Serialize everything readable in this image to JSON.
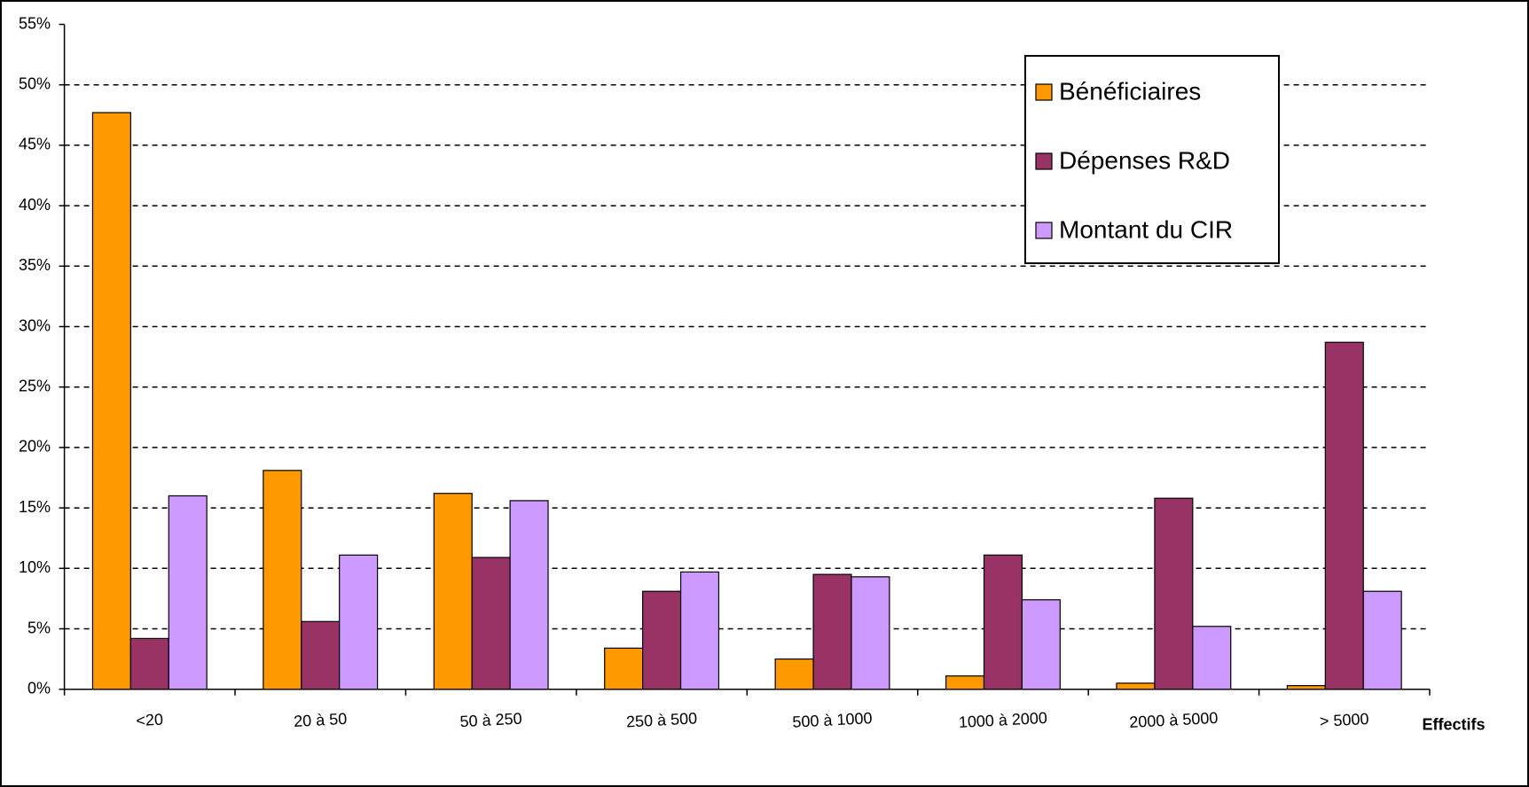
{
  "chart_data": {
    "type": "bar",
    "x_label": "Effectifs",
    "categories": [
      "<20",
      "20 à 50",
      "50 à 250",
      "250 à 500",
      "500 à 1000",
      "1000 à 2000",
      "2000 à 5000",
      "> 5000"
    ],
    "series": [
      {
        "name": "Bénéficiaires",
        "color": "#ff9900",
        "values": [
          47.7,
          18.1,
          16.2,
          3.4,
          2.5,
          1.1,
          0.5,
          0.3
        ]
      },
      {
        "name": "Dépenses R&D",
        "color": "#993366",
        "values": [
          4.2,
          5.6,
          10.9,
          8.1,
          9.5,
          11.1,
          15.8,
          28.7
        ]
      },
      {
        "name": "Montant du CIR",
        "color": "#cc99ff",
        "values": [
          16.0,
          11.1,
          15.6,
          9.7,
          9.3,
          7.4,
          5.2,
          8.1
        ]
      }
    ],
    "ylim": [
      0,
      55
    ],
    "yticks": [
      {
        "value": 0,
        "label": "0%"
      },
      {
        "value": 5,
        "label": "5%"
      },
      {
        "value": 10,
        "label": "10%"
      },
      {
        "value": 15,
        "label": "15%"
      },
      {
        "value": 20,
        "label": "20%"
      },
      {
        "value": 25,
        "label": "25%"
      },
      {
        "value": 30,
        "label": "30%"
      },
      {
        "value": 35,
        "label": "35%"
      },
      {
        "value": 40,
        "label": "40%"
      },
      {
        "value": 45,
        "label": "45%"
      },
      {
        "value": 50,
        "label": "50%"
      },
      {
        "value": 55,
        "label": "55%"
      }
    ],
    "grid": true,
    "legend": "top-right"
  }
}
